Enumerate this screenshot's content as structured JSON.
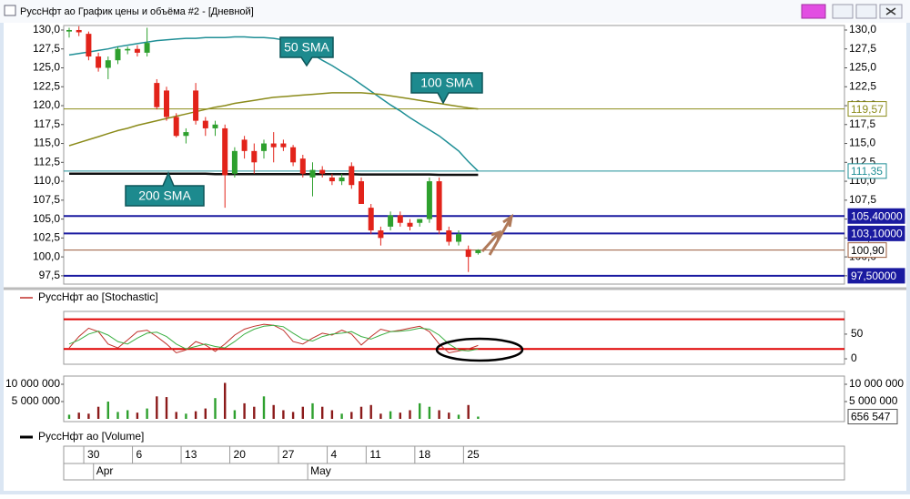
{
  "window": {
    "title": "РуссНфт ао График цены и объёма #2 - [Дневной]"
  },
  "chart_data": [
    {
      "type": "candlestick",
      "categories": [
        null,
        null,
        "30",
        null,
        null,
        null,
        null,
        "6",
        null,
        null,
        null,
        null,
        "13",
        null,
        null,
        null,
        null,
        "20",
        null,
        null,
        null,
        null,
        "27",
        null,
        null,
        null,
        null,
        "4",
        null,
        null,
        null,
        "11",
        null,
        null,
        null,
        null,
        "18",
        null,
        null,
        null,
        null,
        "25",
        null
      ],
      "month_labels": [
        null,
        null,
        null,
        "Apr",
        null,
        null,
        null,
        null,
        null,
        null,
        null,
        null,
        null,
        null,
        null,
        null,
        null,
        null,
        null,
        null,
        null,
        null,
        null,
        null,
        null,
        "May",
        null,
        null,
        null,
        null,
        null,
        null,
        null,
        null,
        null,
        null,
        null,
        null,
        null,
        null,
        null,
        null,
        null
      ],
      "open": [
        129.8,
        130.0,
        129.5,
        126.5,
        125.0,
        126.0,
        127.3,
        127.5,
        127.0,
        123.0,
        122.0,
        118.5,
        116.0,
        122.0,
        118.0,
        117.0,
        117.0,
        111.0,
        115.5,
        114.0,
        114.0,
        115.0,
        115.0,
        114.5,
        113.0,
        110.5,
        111.5,
        110.5,
        110.0,
        112.0,
        110.0,
        106.5,
        103.5,
        104.0,
        105.5,
        104.5,
        104.5,
        105.0,
        110.0,
        103.5,
        102.0,
        101.0,
        100.5
      ],
      "high": [
        130.3,
        130.5,
        129.8,
        127.0,
        126.5,
        127.8,
        127.8,
        128.0,
        130.3,
        123.5,
        122.5,
        119.0,
        117.0,
        123.0,
        118.5,
        118.0,
        117.5,
        114.5,
        116.0,
        115.0,
        115.5,
        116.5,
        115.5,
        114.8,
        113.5,
        112.5,
        112.0,
        111.0,
        111.0,
        112.5,
        110.5,
        107.0,
        104.0,
        106.0,
        106.0,
        105.0,
        105.0,
        110.5,
        110.5,
        104.0,
        103.5,
        101.5,
        101.0
      ],
      "low": [
        129.0,
        129.2,
        126.0,
        124.5,
        123.5,
        125.5,
        126.8,
        126.5,
        126.5,
        119.5,
        118.0,
        115.8,
        115.0,
        117.5,
        116.0,
        116.0,
        106.5,
        110.5,
        113.0,
        111.0,
        113.0,
        112.5,
        114.0,
        112.0,
        110.5,
        108.0,
        110.5,
        109.5,
        109.5,
        109.0,
        107.0,
        103.0,
        101.5,
        103.5,
        104.0,
        103.5,
        104.0,
        104.5,
        103.0,
        101.5,
        101.5,
        98.0,
        100.3
      ],
      "close": [
        130.0,
        129.7,
        126.5,
        125.0,
        126.0,
        127.5,
        127.5,
        127.0,
        128.3,
        119.8,
        118.5,
        116.0,
        116.5,
        118.0,
        117.0,
        117.5,
        110.8,
        114.0,
        114.0,
        112.5,
        115.0,
        114.5,
        114.5,
        112.5,
        111.0,
        111.5,
        111.0,
        110.0,
        110.5,
        109.5,
        107.0,
        103.5,
        102.5,
        105.5,
        104.5,
        104.0,
        105.0,
        110.0,
        103.5,
        102.0,
        103.0,
        100.0,
        100.9
      ],
      "up_color": "#2ea02e",
      "down_color": "#e2231a",
      "ylim": [
        96.4,
        130.6
      ],
      "yticks": [
        {
          "value": 97.5,
          "label": "97,5"
        },
        {
          "value": 100,
          "label": "100,0"
        },
        {
          "value": 102.5,
          "label": "102,5"
        },
        {
          "value": 105,
          "label": "105,0"
        },
        {
          "value": 107.5,
          "label": "107,5"
        },
        {
          "value": 110,
          "label": "110,0"
        },
        {
          "value": 112.5,
          "label": "112,5"
        },
        {
          "value": 115,
          "label": "115,0"
        },
        {
          "value": 117.5,
          "label": "117,5"
        },
        {
          "value": 120,
          "label": "120,0"
        },
        {
          "value": 122.5,
          "label": "122,5"
        },
        {
          "value": 125,
          "label": "125,0"
        },
        {
          "value": 127.5,
          "label": "127,5"
        },
        {
          "value": 130,
          "label": "130,0"
        }
      ],
      "series": [
        {
          "name": "50 SMA",
          "color": "#1f8f96",
          "values": [
            126.7,
            126.9,
            127.1,
            127.3,
            127.5,
            127.8,
            128.0,
            128.2,
            128.4,
            128.6,
            128.7,
            128.8,
            128.9,
            128.9,
            129.0,
            129.0,
            129.0,
            129.1,
            129.1,
            129.0,
            129.0,
            128.9,
            128.7,
            128.2,
            127.5,
            126.8,
            126.0,
            125.3,
            124.5,
            123.7,
            122.8,
            121.9,
            121.0,
            120.1,
            119.3,
            118.4,
            117.6,
            116.8,
            116.0,
            115.0,
            114.0,
            112.6,
            111.35
          ]
        },
        {
          "name": "100 SMA",
          "color": "#8b8b1a",
          "values": [
            114.7,
            115.1,
            115.5,
            115.9,
            116.3,
            116.7,
            117.0,
            117.4,
            117.7,
            118.0,
            118.3,
            118.6,
            118.9,
            119.2,
            119.5,
            119.8,
            120.0,
            120.3,
            120.5,
            120.7,
            120.9,
            121.1,
            121.2,
            121.3,
            121.4,
            121.5,
            121.6,
            121.7,
            121.7,
            121.7,
            121.7,
            121.6,
            121.5,
            121.3,
            121.1,
            120.9,
            120.7,
            120.5,
            120.3,
            120.1,
            119.9,
            119.7,
            119.57
          ]
        },
        {
          "name": "200 SMA",
          "color": "#111111",
          "values": [
            111.0,
            111.0,
            111.0,
            111.0,
            111.0,
            111.0,
            111.0,
            111.0,
            111.0,
            111.0,
            111.0,
            111.0,
            111.0,
            111.0,
            111.0,
            110.95,
            110.95,
            110.95,
            110.95,
            110.95,
            110.95,
            110.95,
            110.95,
            110.95,
            110.95,
            110.95,
            110.95,
            110.95,
            110.95,
            110.95,
            110.9,
            110.9,
            110.9,
            110.9,
            110.9,
            110.9,
            110.9,
            110.9,
            110.85,
            110.85,
            110.85,
            110.85,
            110.85
          ]
        }
      ],
      "levels": [
        {
          "value": 119.57,
          "label": "119,57",
          "color": "#8b8b1a"
        },
        {
          "value": 111.35,
          "label": "111,35",
          "color": "#1f8f96"
        },
        {
          "value": 105.4,
          "label": "105,40000",
          "color": "#1a1aa0"
        },
        {
          "value": 103.1,
          "label": "103,10000",
          "color": "#1a1aa0"
        },
        {
          "value": 100.9,
          "label": "100,90",
          "color": "#9a5a3a"
        },
        {
          "value": 97.5,
          "label": "97,50000",
          "color": "#1a1aa0"
        }
      ]
    },
    {
      "type": "line",
      "title": "РуссНфт ао [Stochastic]",
      "legend_color": "#c0302a",
      "ylim": [
        -11,
        96
      ],
      "yticks": [
        0,
        50
      ],
      "levels": [
        {
          "value": 80,
          "color": "#e00000"
        },
        {
          "value": 20,
          "color": "#e00000"
        }
      ],
      "series": [
        {
          "color": "#c0302a",
          "values": [
            22,
            45,
            62,
            55,
            30,
            22,
            38,
            55,
            58,
            45,
            30,
            12,
            18,
            35,
            28,
            15,
            30,
            48,
            60,
            66,
            70,
            68,
            58,
            35,
            30,
            42,
            52,
            48,
            58,
            50,
            28,
            45,
            60,
            55,
            58,
            62,
            66,
            55,
            30,
            12,
            16,
            20,
            27
          ]
        },
        {
          "color": "#3cb043",
          "values": [
            30,
            38,
            50,
            56,
            48,
            35,
            30,
            42,
            52,
            54,
            45,
            30,
            20,
            25,
            30,
            25,
            22,
            35,
            50,
            60,
            66,
            68,
            65,
            52,
            40,
            36,
            45,
            50,
            52,
            55,
            45,
            40,
            48,
            55,
            56,
            58,
            62,
            60,
            48,
            30,
            18,
            16,
            20
          ]
        }
      ]
    },
    {
      "type": "bar",
      "title": "РуссНфт ао [Volume]",
      "legend_color": "#000000",
      "up_color": "#2ea02e",
      "down_color": "#8b1a1a",
      "ylim": [
        -790000,
        12370000
      ],
      "yticks": [
        {
          "value": 5000000,
          "label": "5 000 000"
        },
        {
          "value": 10000000,
          "label": "10 000 000"
        }
      ],
      "values": [
        1200000,
        1800000,
        1500000,
        3500000,
        5000000,
        2000000,
        2500000,
        1800000,
        3000000,
        6500000,
        6300000,
        2000000,
        1500000,
        2200000,
        3000000,
        6000000,
        10400000,
        2500000,
        4500000,
        3500000,
        6500000,
        4000000,
        2500000,
        2000000,
        3500000,
        4500000,
        3500000,
        2500000,
        1500000,
        2000000,
        3500000,
        4000000,
        1500000,
        2200000,
        1800000,
        2500000,
        4500000,
        3500000,
        2500000,
        1800000,
        1200000,
        4000000,
        656547
      ],
      "value_labels": [
        null,
        null,
        null,
        null,
        null,
        null,
        null,
        null,
        null,
        null,
        null,
        null,
        null,
        null,
        null,
        null,
        null,
        null,
        null,
        null,
        null,
        null,
        null,
        null,
        null,
        null,
        null,
        null,
        null,
        null,
        null,
        null,
        null,
        null,
        null,
        null,
        null,
        null,
        null,
        null,
        null,
        null,
        "656 547"
      ]
    }
  ]
}
